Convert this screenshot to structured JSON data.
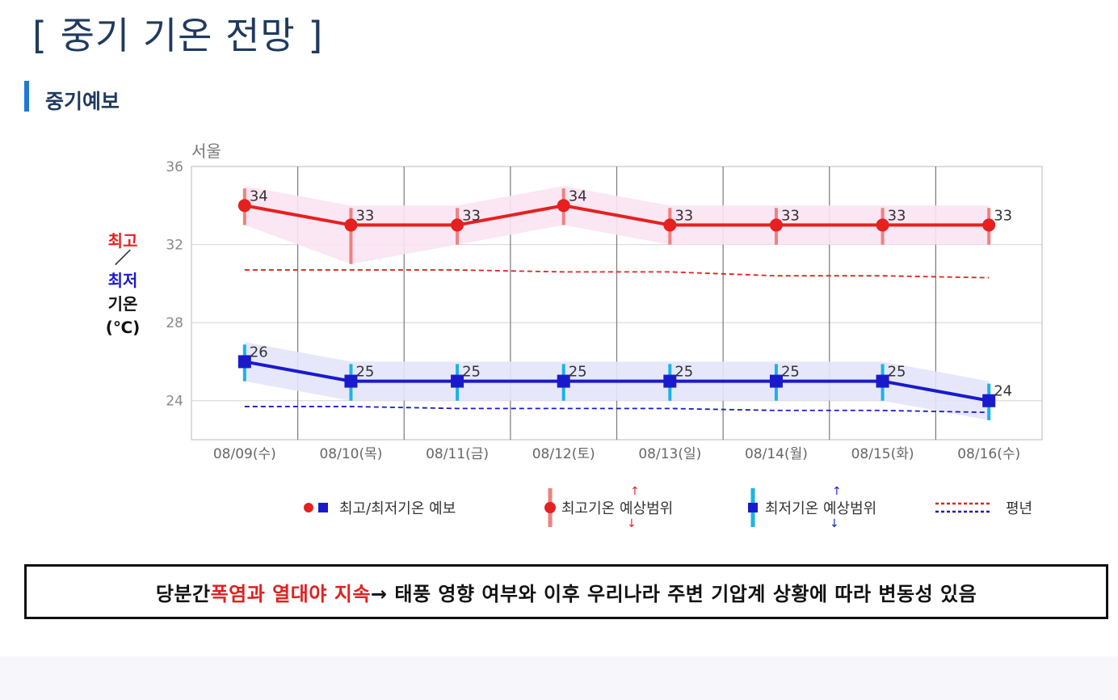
{
  "header": {
    "title": "[ 중기 기온 전망 ]",
    "section": "중기예보"
  },
  "colors": {
    "max": "#e62020",
    "min": "#1a1acc",
    "max_band": "#fbe3f2",
    "min_band": "#e4e4fb",
    "max_range": "#f08080",
    "min_range": "#19b4e6",
    "title": "#1f3a5f",
    "accent": "#1f7ad6"
  },
  "chart_data": {
    "type": "line",
    "title": "서울",
    "ylabel_parts": [
      "최고",
      "／",
      "최저",
      "기온",
      "(℃)"
    ],
    "ylim": [
      22,
      36
    ],
    "yticks": [
      24,
      28,
      32,
      36
    ],
    "categories": [
      "08/09(수)",
      "08/10(목)",
      "08/11(금)",
      "08/12(토)",
      "08/13(일)",
      "08/14(월)",
      "08/15(화)",
      "08/16(수)"
    ],
    "series": [
      {
        "name": "최고기온 예보",
        "values": [
          34,
          33,
          33,
          34,
          33,
          33,
          33,
          33
        ],
        "range_low": [
          33,
          31,
          32,
          33,
          32,
          32,
          32,
          32
        ],
        "range_high": [
          35,
          34,
          34,
          35,
          34,
          34,
          34,
          34
        ]
      },
      {
        "name": "최저기온 예보",
        "values": [
          26,
          25,
          25,
          25,
          25,
          25,
          25,
          24
        ],
        "range_low": [
          25,
          24,
          24,
          24,
          24,
          24,
          24,
          23
        ],
        "range_high": [
          27,
          26,
          26,
          26,
          26,
          26,
          26,
          25
        ]
      }
    ],
    "normals": {
      "max": [
        30.7,
        30.7,
        30.7,
        30.6,
        30.6,
        30.4,
        30.4,
        30.3
      ],
      "min": [
        23.7,
        23.7,
        23.6,
        23.6,
        23.6,
        23.5,
        23.5,
        23.4
      ]
    },
    "legend": [
      {
        "label": "최고/최저기온 예보"
      },
      {
        "label": "최고기온 예상범위"
      },
      {
        "label": "최저기온 예상범위"
      },
      {
        "label": "평년"
      }
    ],
    "legend_position": "bottom"
  },
  "summary": {
    "prefix": "당분간 ",
    "highlight": "폭염과 열대야 지속",
    "suffix": " → 태풍 영향 여부와 이후 우리나라 주변 기압계 상황에 따라 변동성 있음"
  }
}
